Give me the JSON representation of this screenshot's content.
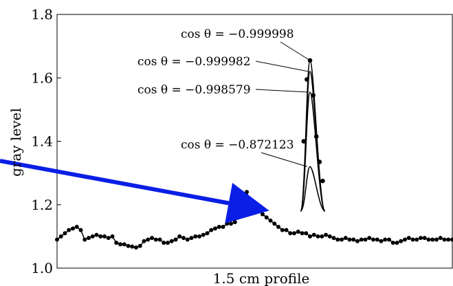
{
  "chart_data": {
    "type": "line",
    "xlabel": "1.5 cm profile",
    "ylabel": "gray level",
    "xlim": [
      0,
      100
    ],
    "ylim": [
      1.0,
      1.8
    ],
    "grid": false,
    "yticks": [
      "1.0",
      "1.2",
      "1.4",
      "1.6",
      "1.8"
    ],
    "ytick_values": [
      1.0,
      1.2,
      1.4,
      1.6,
      1.8
    ],
    "profile": {
      "x": [
        0,
        1,
        2,
        3,
        4,
        5,
        6,
        7,
        8,
        9,
        10,
        11,
        12,
        13,
        14,
        15,
        16,
        17,
        18,
        19,
        20,
        21,
        22,
        23,
        24,
        25,
        26,
        27,
        28,
        29,
        30,
        31,
        32,
        33,
        34,
        35,
        36,
        37,
        38,
        39,
        40,
        41,
        42,
        43,
        44,
        45,
        46,
        47,
        48,
        49,
        50,
        51,
        52,
        53,
        54,
        55,
        56,
        57,
        58,
        59,
        60,
        61,
        62,
        63,
        64,
        65,
        66,
        67,
        68,
        69,
        70,
        71,
        72,
        73,
        74,
        75,
        76,
        77,
        78,
        79,
        80,
        81,
        82,
        83,
        84,
        85,
        86,
        87,
        88,
        89,
        90,
        91,
        92,
        93,
        94,
        95,
        96,
        97,
        98,
        99,
        100
      ],
      "values": [
        1.09,
        1.1,
        1.11,
        1.12,
        1.125,
        1.13,
        1.12,
        1.09,
        1.095,
        1.1,
        1.105,
        1.1,
        1.1,
        1.095,
        1.1,
        1.08,
        1.075,
        1.075,
        1.07,
        1.068,
        1.065,
        1.07,
        1.085,
        1.09,
        1.095,
        1.09,
        1.09,
        1.08,
        1.08,
        1.085,
        1.09,
        1.1,
        1.095,
        1.09,
        1.095,
        1.1,
        1.1,
        1.105,
        1.11,
        1.12,
        1.125,
        1.13,
        1.13,
        1.14,
        1.14,
        1.145,
        1.17,
        1.22,
        1.24,
        1.2,
        1.19,
        1.18,
        1.17,
        1.16,
        1.15,
        1.14,
        1.13,
        1.12,
        1.12,
        1.11,
        1.11,
        1.115,
        1.11,
        1.11,
        1.1,
        1.105,
        1.1,
        1.1,
        1.105,
        1.1,
        1.095,
        1.09,
        1.09,
        1.095,
        1.09,
        1.09,
        1.085,
        1.09,
        1.09,
        1.095,
        1.09,
        1.09,
        1.085,
        1.09,
        1.09,
        1.08,
        1.08,
        1.085,
        1.09,
        1.095,
        1.09,
        1.09,
        1.095,
        1.095,
        1.09,
        1.09,
        1.09,
        1.095,
        1.09,
        1.09,
        1.09
      ]
    },
    "peak_markers": {
      "x": [
        62.4,
        63.2,
        64.0,
        64.8,
        65.6,
        66.4,
        67.2
      ],
      "values": [
        1.4,
        1.595,
        1.655,
        1.545,
        1.415,
        1.335,
        1.275
      ]
    },
    "peaks": [
      {
        "label": "cos θ = −0.999998",
        "peak": 1.655
      },
      {
        "label": "cos θ = −0.999982",
        "peak": 1.62
      },
      {
        "label": "cos θ = −0.998579",
        "peak": 1.555
      },
      {
        "label": "cos θ = −0.872123",
        "peak": 1.32
      }
    ],
    "peak_center": 64.0,
    "peak_base_left": 61.6,
    "peak_base_right": 67.8,
    "base_level": 1.18,
    "arrow_color": "#0a1ee6"
  }
}
